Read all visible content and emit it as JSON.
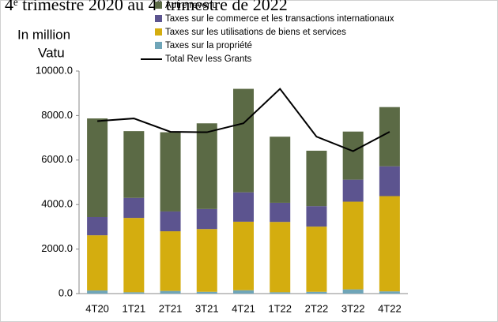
{
  "chart_data": {
    "type": "stacked_bar_line",
    "title": "4ᵉ trimestre 2020 au 4ᵉ trimestre de 2022",
    "y_label": [
      "In million",
      "Vatu"
    ],
    "categories": [
      "4T20",
      "1T21",
      "2T21",
      "3T21",
      "4T21",
      "1T22",
      "2T22",
      "3T22",
      "4T22"
    ],
    "series": [
      {
        "name": "Taxes sur la propriété",
        "color": "#6fa5b8",
        "values": [
          140,
          60,
          120,
          80,
          150,
          60,
          80,
          190,
          100
        ]
      },
      {
        "name": "Taxes sur les utilisations de biens et services",
        "color": "#d4ad0f",
        "values": [
          2480,
          3340,
          2680,
          2820,
          3080,
          3160,
          2930,
          3940,
          4280
        ]
      },
      {
        "name": "Taxes sur le commerce et les transactions internationaux",
        "color": "#5c548f",
        "values": [
          820,
          900,
          890,
          900,
          1320,
          860,
          920,
          990,
          1340
        ]
      },
      {
        "name": "Autre revenu",
        "color": "#5b6a45",
        "values": [
          4430,
          3000,
          3560,
          3850,
          4650,
          2970,
          2490,
          2160,
          2660
        ]
      }
    ],
    "line": {
      "name": "Total Rev less Grants",
      "color": "#000000",
      "values": [
        7750,
        7870,
        7270,
        7250,
        7650,
        9200,
        7050,
        6400,
        7270
      ]
    },
    "ylim": [
      0,
      10000
    ],
    "yticks": [
      {
        "value": 0,
        "label": "0.0"
      },
      {
        "value": 2000,
        "label": "2000.0"
      },
      {
        "value": 4000,
        "label": "4000.0"
      },
      {
        "value": 6000,
        "label": "6000.0"
      },
      {
        "value": 8000,
        "label": "8000.0"
      },
      {
        "value": 10000,
        "label": "10000.0"
      }
    ]
  }
}
